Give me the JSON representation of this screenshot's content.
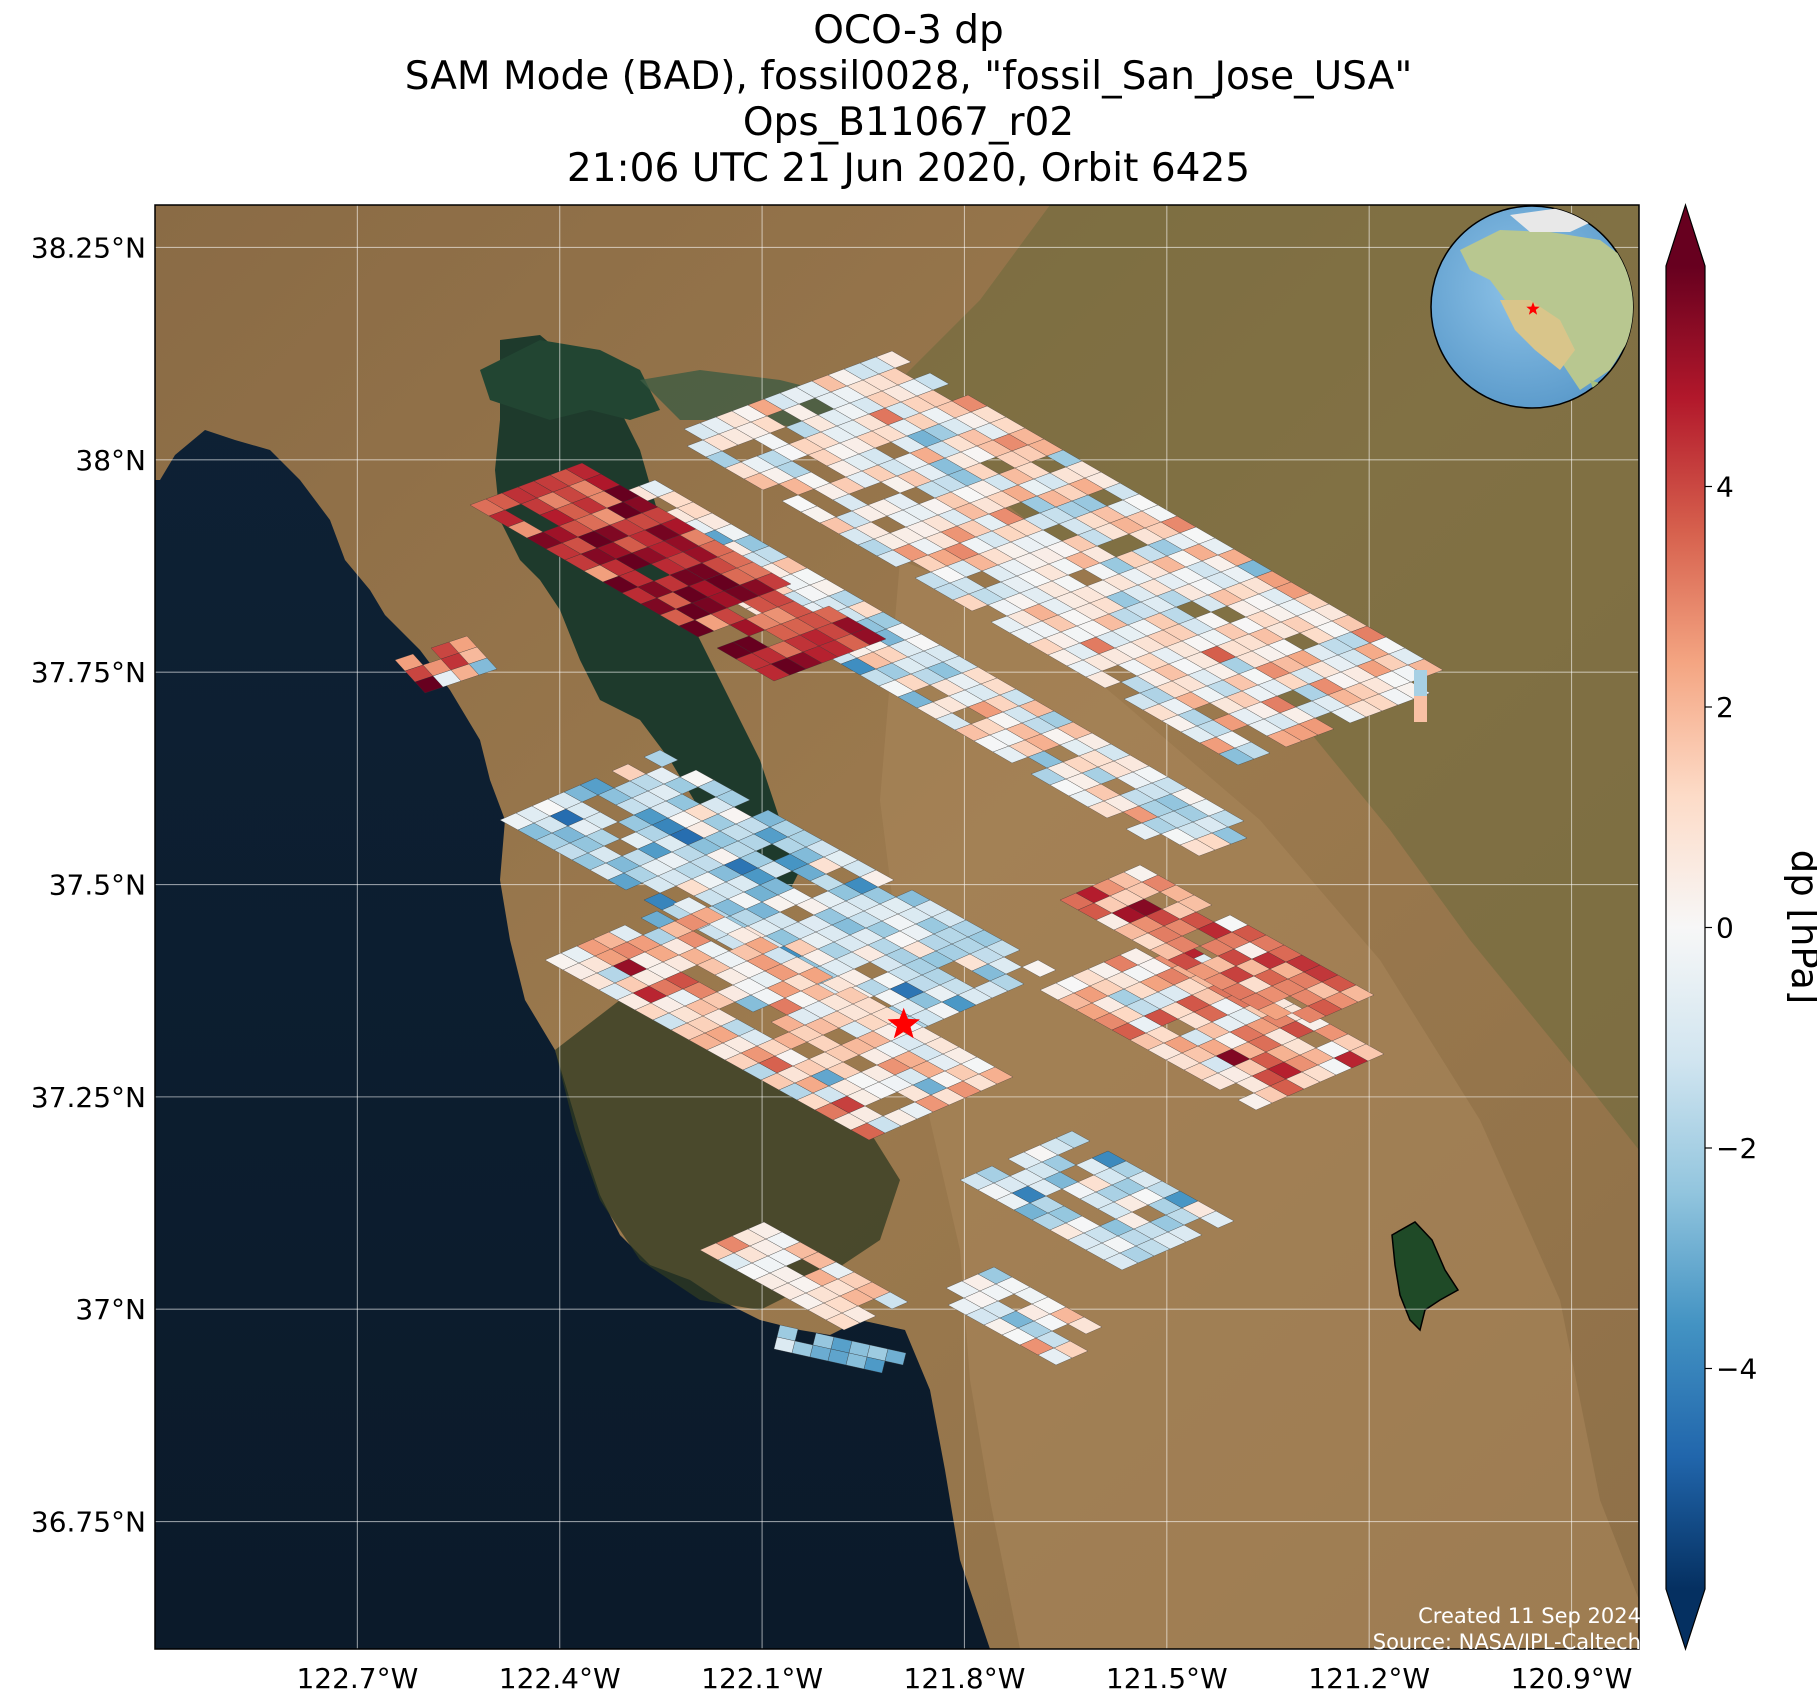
{
  "title": {
    "lines": [
      "OCO-3 dp",
      "SAM Mode (BAD), fossil0028, \"fossil_San_Jose_USA\"",
      "Ops_B11067_r02",
      "21:06 UTC 21 Jun 2020, Orbit 6425"
    ]
  },
  "map": {
    "lon_range": [
      -123.0,
      -120.8
    ],
    "lat_range": [
      36.6,
      38.3
    ],
    "lat_ticks": [
      {
        "value": 38.25,
        "label": "38.25°N"
      },
      {
        "value": 38.0,
        "label": "38°N"
      },
      {
        "value": 37.75,
        "label": "37.75°N"
      },
      {
        "value": 37.5,
        "label": "37.5°N"
      },
      {
        "value": 37.25,
        "label": "37.25°N"
      },
      {
        "value": 37.0,
        "label": "37°N"
      },
      {
        "value": 36.75,
        "label": "36.75°N"
      }
    ],
    "lon_ticks": [
      {
        "value": -122.7,
        "label": "122.7°W"
      },
      {
        "value": -122.4,
        "label": "122.4°W"
      },
      {
        "value": -122.1,
        "label": "122.1°W"
      },
      {
        "value": -121.8,
        "label": "121.8°W"
      },
      {
        "value": -121.5,
        "label": "121.5°W"
      },
      {
        "value": -121.2,
        "label": "121.2°W"
      },
      {
        "value": -120.9,
        "label": "120.9°W"
      }
    ],
    "target": {
      "name": "fossil_San_Jose_USA",
      "lon": -121.89,
      "lat": 37.335,
      "color": "#ff0000"
    },
    "globe_inset": {
      "marker_color": "#ff0000"
    }
  },
  "colorbar": {
    "label": "dp [hPa]",
    "range": [
      -6,
      6
    ],
    "ticks": [
      {
        "value": 4,
        "label": "4"
      },
      {
        "value": 2,
        "label": "2"
      },
      {
        "value": 0,
        "label": "0"
      },
      {
        "value": -2,
        "label": "−2"
      },
      {
        "value": -4,
        "label": "−4"
      }
    ],
    "colormap": "RdBu_r"
  },
  "credits": {
    "created": "Created 11 Sep 2024",
    "source": "Source: NASA/JPL-Caltech"
  }
}
